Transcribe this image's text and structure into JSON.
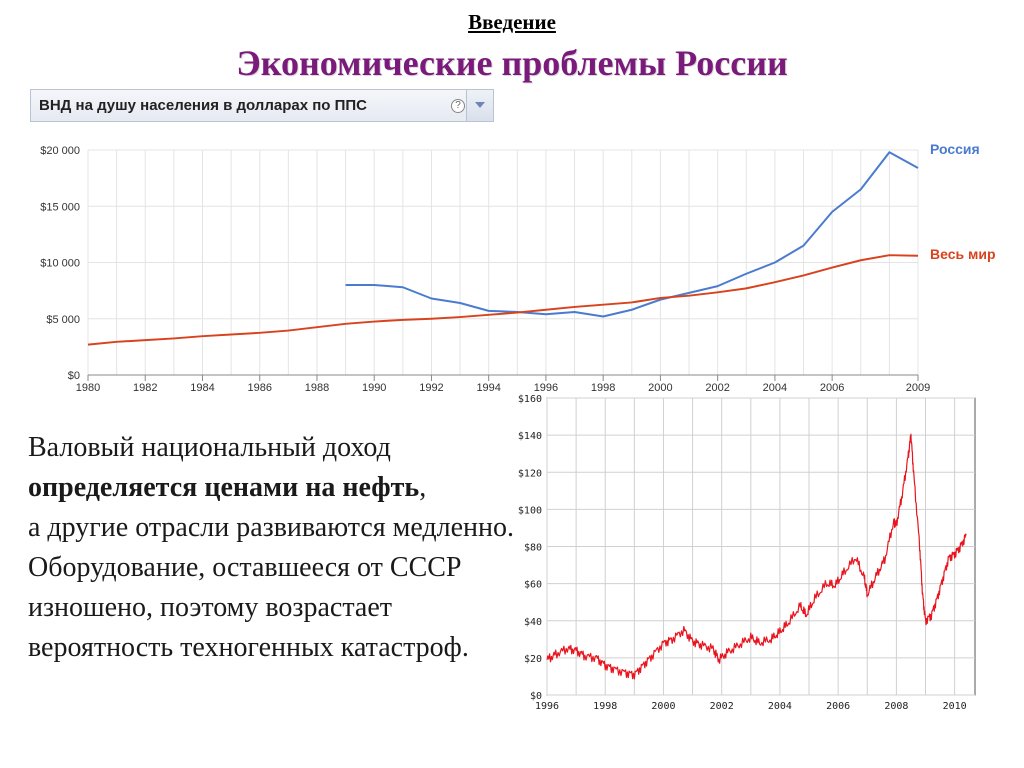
{
  "slide": {
    "intro": "Введение",
    "title": "Экономические проблемы России"
  },
  "selector": {
    "label": "ВНД на душу населения в долларах по ППС",
    "help_glyph": "?",
    "dropdown_icon": "chevron-down-icon"
  },
  "body": {
    "line1": "Валовый национальный доход",
    "line2_bold": "определяется ценами на нефть",
    "line2_tail": ",",
    "rest": "а другие отрасли развиваются медленно. Оборудование, оставшееся от СССР изношено, поэтому возрастает вероятность техногенных катастроф."
  },
  "chart_data": [
    {
      "type": "line",
      "title": "",
      "x_ticks": [
        "1980",
        "1982",
        "1984",
        "1986",
        "1988",
        "1990",
        "1992",
        "1994",
        "1996",
        "1998",
        "2000",
        "2002",
        "2004",
        "2006",
        "2009"
      ],
      "y_ticks": [
        "$0",
        "$5 000",
        "$10 000",
        "$15 000",
        "$20 000"
      ],
      "ylim": [
        0,
        20000
      ],
      "xlim": [
        1980,
        2009
      ],
      "grid": true,
      "series": [
        {
          "name": "Россия",
          "color": "#4a7bd0",
          "x": [
            1989,
            1990,
            1991,
            1992,
            1993,
            1994,
            1995,
            1996,
            1997,
            1998,
            1999,
            2000,
            2001,
            2002,
            2003,
            2004,
            2005,
            2006,
            2007,
            2008,
            2009
          ],
          "values": [
            8000,
            8000,
            7800,
            6800,
            6400,
            5700,
            5600,
            5400,
            5600,
            5200,
            5800,
            6700,
            7300,
            7900,
            9000,
            10000,
            11500,
            14500,
            16500,
            19800,
            18400
          ]
        },
        {
          "name": "Весь мир",
          "color": "#d8431e",
          "x": [
            1980,
            1981,
            1982,
            1983,
            1984,
            1985,
            1986,
            1987,
            1988,
            1989,
            1990,
            1991,
            1992,
            1993,
            1994,
            1995,
            1996,
            1997,
            1998,
            1999,
            2000,
            2001,
            2002,
            2003,
            2004,
            2005,
            2006,
            2007,
            2008,
            2009
          ],
          "values": [
            2700,
            2950,
            3100,
            3250,
            3450,
            3600,
            3750,
            3950,
            4250,
            4550,
            4750,
            4900,
            5000,
            5150,
            5350,
            5550,
            5800,
            6050,
            6250,
            6450,
            6850,
            7050,
            7350,
            7700,
            8250,
            8850,
            9550,
            10200,
            10650,
            10600
          ]
        }
      ]
    },
    {
      "type": "line",
      "title": "",
      "x_ticks": [
        "1996",
        "1998",
        "2000",
        "2002",
        "2004",
        "2006",
        "2008",
        "2010"
      ],
      "y_ticks": [
        "$0",
        "$20",
        "$40",
        "$60",
        "$80",
        "$100",
        "$120",
        "$140",
        "$160"
      ],
      "ylim": [
        0,
        160
      ],
      "xlim": [
        1996,
        2010.7
      ],
      "grid": true,
      "series": [
        {
          "color": "#e8141e",
          "x": [
            1996.0,
            1996.3,
            1996.7,
            1997.0,
            1997.3,
            1997.7,
            1998.0,
            1998.3,
            1998.7,
            1999.0,
            1999.3,
            1999.6,
            2000.0,
            2000.3,
            2000.7,
            2001.0,
            2001.3,
            2001.7,
            2001.9,
            2002.2,
            2002.6,
            2003.0,
            2003.3,
            2003.7,
            2004.0,
            2004.3,
            2004.7,
            2004.9,
            2005.2,
            2005.6,
            2005.9,
            2006.2,
            2006.6,
            2006.9,
            2007.0,
            2007.3,
            2007.6,
            2007.9,
            2008.0,
            2008.2,
            2008.4,
            2008.5,
            2008.6,
            2008.8,
            2008.9,
            2009.0,
            2009.2,
            2009.4,
            2009.6,
            2009.8,
            2010.0,
            2010.2,
            2010.4
          ],
          "values": [
            19,
            22,
            25,
            24,
            21,
            20,
            16,
            14,
            12,
            11,
            16,
            21,
            28,
            30,
            35,
            29,
            27,
            25,
            19,
            23,
            27,
            31,
            28,
            30,
            34,
            39,
            48,
            43,
            52,
            60,
            59,
            66,
            74,
            63,
            54,
            64,
            73,
            93,
            92,
            108,
            128,
            140,
            118,
            80,
            54,
            40,
            43,
            52,
            63,
            74,
            76,
            80,
            86
          ]
        }
      ]
    }
  ]
}
